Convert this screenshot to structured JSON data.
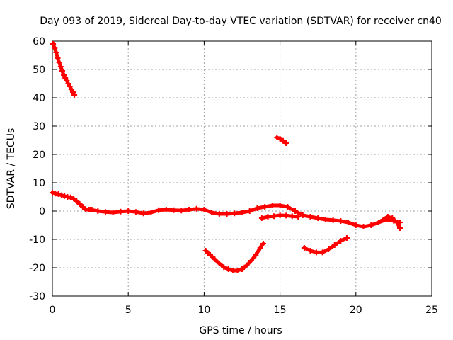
{
  "chart_data": {
    "type": "scatter",
    "title": "Day 093 of 2019, Sidereal Day-to-day VTEC variation (SDTVAR) for receiver cn40",
    "xlabel": "GPS time / hours",
    "ylabel": "SDTVAR / TECUs",
    "xlim": [
      0,
      25
    ],
    "ylim": [
      -30,
      60
    ],
    "xticks": [
      0,
      5,
      10,
      15,
      20,
      25
    ],
    "yticks": [
      -30,
      -20,
      -10,
      0,
      10,
      20,
      30,
      40,
      50,
      60
    ],
    "grid": true,
    "marker_color": "#ff0000",
    "series": [
      {
        "name": "segment-1",
        "x": [
          0.05,
          0.15,
          0.25,
          0.35,
          0.45,
          0.55,
          0.65,
          0.75,
          0.85,
          0.95,
          1.05,
          1.15,
          1.25,
          1.35,
          1.45
        ],
        "y": [
          59,
          57.5,
          56,
          54,
          52.5,
          51,
          49.5,
          48,
          47,
          46,
          45,
          44,
          43,
          42,
          41
        ]
      },
      {
        "name": "segment-2",
        "x": [
          0.0,
          0.2,
          0.4,
          0.6,
          0.8,
          1.0,
          1.2,
          1.4,
          1.6,
          1.8,
          2.0,
          2.2,
          2.4,
          2.6
        ],
        "y": [
          6.5,
          6.2,
          6,
          5.6,
          5.3,
          5,
          4.8,
          4.4,
          3.5,
          2.5,
          1.5,
          0.5,
          0.5,
          0.5
        ]
      },
      {
        "name": "segment-3",
        "x": [
          2.5,
          3.0,
          3.5,
          4.0,
          4.5,
          5.0,
          5.5,
          6.0,
          6.5,
          7.0,
          7.5,
          8.0,
          8.5,
          9.0,
          9.5,
          10.0,
          10.5,
          11.0,
          11.5,
          12.0,
          12.5,
          13.0,
          13.5,
          14.0,
          14.5,
          15.0,
          15.5,
          16.0,
          16.5,
          17.0,
          17.5,
          18.0,
          18.5,
          19.0,
          19.5,
          20.0,
          20.5,
          21.0,
          21.5,
          22.0,
          22.5,
          22.9
        ],
        "y": [
          0.5,
          0,
          -0.3,
          -0.5,
          -0.2,
          0,
          -0.3,
          -0.8,
          -0.5,
          0.3,
          0.5,
          0.3,
          0.2,
          0.5,
          0.8,
          0.5,
          -0.5,
          -1,
          -1,
          -0.8,
          -0.5,
          0,
          1,
          1.5,
          2,
          2,
          1.5,
          0,
          -1.5,
          -2,
          -2.5,
          -3,
          -3.2,
          -3.5,
          -4,
          -5,
          -5.5,
          -5,
          -4,
          -3,
          -3.5,
          -4
        ]
      },
      {
        "name": "segment-4",
        "x": [
          13.8,
          14.2,
          14.6,
          15.0,
          15.4,
          15.8,
          16.2
        ],
        "y": [
          -2.5,
          -2,
          -1.8,
          -1.5,
          -1.6,
          -1.8,
          -2
        ]
      },
      {
        "name": "segment-5",
        "x": [
          10.1,
          10.4,
          10.7,
          11.0,
          11.3,
          11.6,
          11.9,
          12.2,
          12.5,
          12.8,
          13.1,
          13.4,
          13.7,
          13.9
        ],
        "y": [
          -14,
          -15.5,
          -17,
          -18.5,
          -19.8,
          -20.5,
          -21,
          -21,
          -20.5,
          -19.2,
          -17.5,
          -15.5,
          -13,
          -11.5
        ]
      },
      {
        "name": "segment-6",
        "x": [
          16.6,
          17.0,
          17.4,
          17.8,
          18.2,
          18.6,
          19.0,
          19.4
        ],
        "y": [
          -13,
          -14,
          -14.6,
          -14.6,
          -13.5,
          -12,
          -10.5,
          -9.5
        ]
      },
      {
        "name": "segment-7",
        "x": [
          14.8,
          15.0,
          15.2,
          15.4
        ],
        "y": [
          26,
          25.5,
          24.8,
          24
        ]
      },
      {
        "name": "segment-8",
        "x": [
          21.8,
          22.1,
          22.4,
          22.7,
          22.9
        ],
        "y": [
          -3,
          -2,
          -2.5,
          -4,
          -6
        ]
      }
    ]
  }
}
